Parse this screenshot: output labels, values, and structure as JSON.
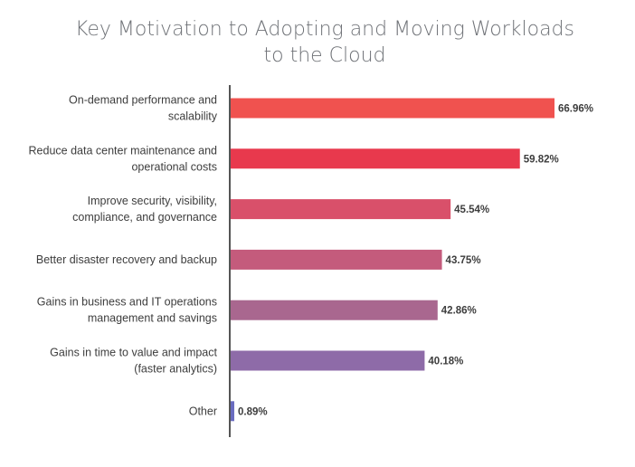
{
  "chart_data": {
    "type": "bar",
    "orientation": "horizontal",
    "title_lines": [
      "Key Motivation to Adopting and Moving Workloads",
      "to the Cloud"
    ],
    "title": "Key Motivation to Adopting and Moving Workloads to the Cloud",
    "categories": [
      [
        "On-demand performance and",
        "scalability"
      ],
      [
        "Reduce data center maintenance and",
        "operational costs"
      ],
      [
        "Improve security, visibility,",
        "compliance, and governance"
      ],
      [
        "Better disaster recovery and backup"
      ],
      [
        "Gains in business and IT operations",
        "management and savings"
      ],
      [
        "Gains in time to value and impact",
        "(faster analytics)"
      ],
      [
        "Other"
      ]
    ],
    "values": [
      66.96,
      59.82,
      45.54,
      43.75,
      42.86,
      40.18,
      0.89
    ],
    "value_labels": [
      "66.96%",
      "59.82%",
      "45.54%",
      "43.75%",
      "42.86%",
      "40.18%",
      "0.89%"
    ],
    "colors": [
      "#f0524f",
      "#e8394d",
      "#d9506a",
      "#c45b7c",
      "#a9678f",
      "#8e6ba8",
      "#6a6cc0"
    ],
    "xlabel": "",
    "ylabel": "",
    "xlim": [
      0,
      66.96
    ],
    "grid": false,
    "legend": "none",
    "axis_color": "#555555"
  }
}
